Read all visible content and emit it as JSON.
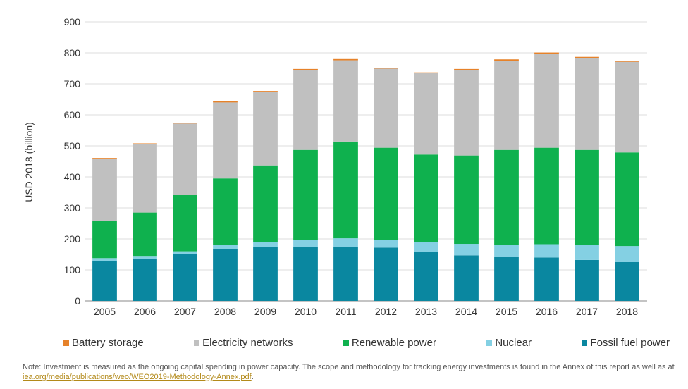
{
  "chart_data": {
    "type": "bar",
    "stacked": true,
    "title": "",
    "xlabel": "",
    "ylabel": "USD 2018 (billion)",
    "ylim": [
      0,
      900
    ],
    "yticks": [
      0,
      100,
      200,
      300,
      400,
      500,
      600,
      700,
      800,
      900
    ],
    "grid": true,
    "legend_position": "bottom",
    "categories": [
      "2005",
      "2006",
      "2007",
      "2008",
      "2009",
      "2010",
      "2011",
      "2012",
      "2013",
      "2014",
      "2015",
      "2016",
      "2017",
      "2018"
    ],
    "series": [
      {
        "name": "Fossil fuel power",
        "color": "#0a87a0",
        "values": [
          128,
          135,
          150,
          168,
          175,
          175,
          175,
          172,
          157,
          147,
          142,
          140,
          132,
          125
        ]
      },
      {
        "name": "Nuclear",
        "color": "#84d0e3",
        "values": [
          10,
          10,
          10,
          12,
          15,
          22,
          27,
          25,
          33,
          37,
          38,
          43,
          48,
          52
        ]
      },
      {
        "name": "Renewable power",
        "color": "#0fb14e",
        "values": [
          120,
          140,
          182,
          215,
          247,
          290,
          312,
          297,
          282,
          285,
          307,
          311,
          307,
          302
        ]
      },
      {
        "name": "Electricity networks",
        "color": "#c0c0c0",
        "values": [
          200,
          220,
          230,
          245,
          237,
          258,
          262,
          255,
          262,
          276,
          288,
          303,
          296,
          292
        ]
      },
      {
        "name": "Battery storage",
        "color": "#e6822a",
        "values": [
          3,
          3,
          3,
          4,
          3,
          3,
          4,
          3,
          3,
          3,
          4,
          4,
          4,
          4
        ]
      }
    ]
  },
  "legend_order": [
    "Battery storage",
    "Electricity networks",
    "Renewable power",
    "Nuclear",
    "Fossil fuel power"
  ],
  "note": {
    "text": "Note: Investment is measured as the ongoing capital spending in power capacity. The scope and methodology for tracking energy investments is found in the Annex of this report as well as at ",
    "link": "iea.org/media/publications/weo/WEO2019-Methodology-Annex.pdf",
    "end": "."
  }
}
